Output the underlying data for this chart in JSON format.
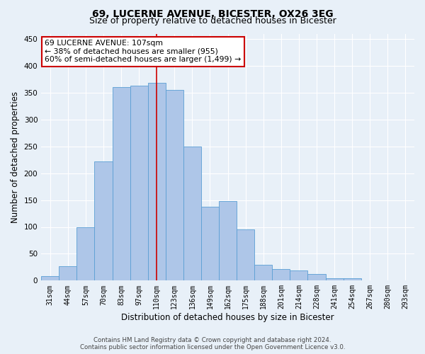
{
  "title": "69, LUCERNE AVENUE, BICESTER, OX26 3EG",
  "subtitle": "Size of property relative to detached houses in Bicester",
  "xlabel": "Distribution of detached houses by size in Bicester",
  "ylabel": "Number of detached properties",
  "bar_labels": [
    "31sqm",
    "44sqm",
    "57sqm",
    "70sqm",
    "83sqm",
    "97sqm",
    "110sqm",
    "123sqm",
    "136sqm",
    "149sqm",
    "162sqm",
    "175sqm",
    "188sqm",
    "201sqm",
    "214sqm",
    "228sqm",
    "241sqm",
    "254sqm",
    "267sqm",
    "280sqm",
    "293sqm"
  ],
  "bar_values": [
    8,
    27,
    99,
    222,
    360,
    363,
    368,
    355,
    250,
    137,
    148,
    96,
    29,
    22,
    19,
    12,
    5,
    4,
    1,
    1,
    0
  ],
  "bar_color": "#aec6e8",
  "bar_edge_color": "#5a9fd4",
  "annotation_text": "69 LUCERNE AVENUE: 107sqm\n← 38% of detached houses are smaller (955)\n60% of semi-detached houses are larger (1,499) →",
  "annotation_box_color": "#ffffff",
  "annotation_box_edge": "#cc0000",
  "ylim": [
    0,
    460
  ],
  "yticks": [
    0,
    50,
    100,
    150,
    200,
    250,
    300,
    350,
    400,
    450
  ],
  "footer_line1": "Contains HM Land Registry data © Crown copyright and database right 2024.",
  "footer_line2": "Contains public sector information licensed under the Open Government Licence v3.0.",
  "bg_color": "#e8f0f8",
  "plot_bg_color": "#e8f0f8",
  "vline_color": "#cc0000",
  "title_fontsize": 10,
  "subtitle_fontsize": 9,
  "tick_fontsize": 7,
  "ylabel_fontsize": 8.5,
  "vline_pos": 6.0
}
